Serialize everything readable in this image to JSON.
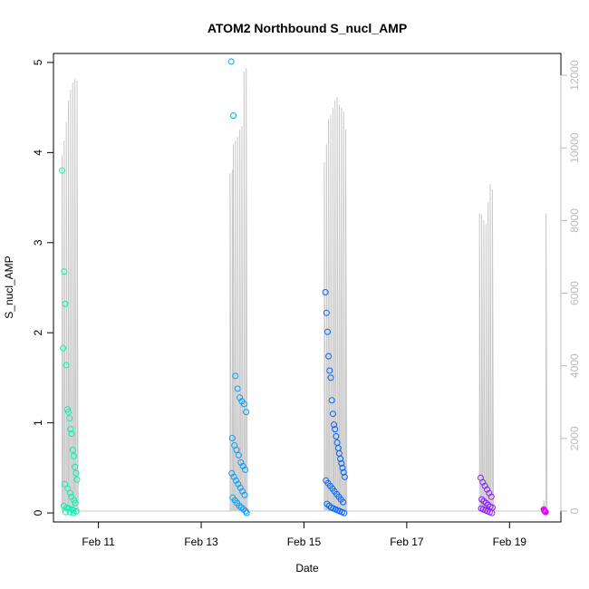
{
  "chart_data": {
    "type": "scatter",
    "title": "ATOM2 Northbound S_nucl_AMP",
    "xlabel": "Date",
    "ylabel": "S_nucl_AMP",
    "x_ticks": [
      "Feb 11",
      "Feb 13",
      "Feb 15",
      "Feb 17",
      "Feb 19"
    ],
    "y_ticks": [
      "0",
      "1",
      "2",
      "3",
      "4",
      "5"
    ],
    "y2_ticks": [
      "0",
      "2000",
      "4000",
      "6000",
      "8000",
      "10000",
      "12000"
    ],
    "xlim": [
      "2016-02-10 03:00",
      "2016-02-20 00:00"
    ],
    "ylim": [
      -0.1,
      5.1
    ],
    "y2lim": [
      -300,
      12600
    ],
    "grid": false,
    "colors": {
      "axis": "#000000",
      "secondary_axis": "#bbbbbb",
      "line": "#c8c8c8",
      "gradient_start": "#00ffaa",
      "gradient_mid": "#00aaff",
      "gradient_mid2": "#0044ff",
      "gradient_end": "#ff00ff"
    },
    "secondary_series": {
      "name": "",
      "axis": "right",
      "x": [
        "2016-02-10 07:00",
        "2016-02-10 08:00",
        "2016-02-10 09:00",
        "2016-02-10 10:00",
        "2016-02-10 11:00",
        "2016-02-10 12:00",
        "2016-02-10 13:00",
        "2016-02-10 14:00",
        "2016-02-13 13:30",
        "2016-02-13 14:30",
        "2016-02-13 15:00",
        "2016-02-13 16:00",
        "2016-02-13 17:00",
        "2016-02-13 18:00",
        "2016-02-13 19:00",
        "2016-02-13 20:00",
        "2016-02-13 21:00",
        "2016-02-15 09:30",
        "2016-02-15 10:30",
        "2016-02-15 11:30",
        "2016-02-15 12:30",
        "2016-02-15 13:30",
        "2016-02-15 14:30",
        "2016-02-15 15:30",
        "2016-02-15 16:30",
        "2016-02-15 17:30",
        "2016-02-15 18:30",
        "2016-02-15 19:30",
        "2016-02-18 10:00",
        "2016-02-18 11:00",
        "2016-02-18 12:00",
        "2016-02-18 13:00",
        "2016-02-18 14:00",
        "2016-02-18 15:00",
        "2016-02-18 16:00",
        "2016-02-19 16:00",
        "2016-02-19 17:00"
      ],
      "values": [
        9800,
        10200,
        10700,
        11300,
        11600,
        11800,
        11900,
        11850,
        9300,
        9400,
        10100,
        10200,
        10300,
        10500,
        10600,
        12100,
        12200,
        9600,
        10100,
        10800,
        10900,
        11100,
        11300,
        11400,
        11200,
        11100,
        11000,
        10500,
        8200,
        8150,
        8000,
        7900,
        8500,
        9000,
        8850,
        290,
        8200
      ]
    },
    "series": [
      {
        "name": "",
        "x": [
          "2016-02-10 07:00",
          "2016-02-10 07:30",
          "2016-02-10 08:00",
          "2016-02-10 08:30",
          "2016-02-10 09:00",
          "2016-02-10 09:30",
          "2016-02-10 10:00",
          "2016-02-10 10:30",
          "2016-02-10 11:00",
          "2016-02-10 11:30",
          "2016-02-10 12:00",
          "2016-02-10 12:30",
          "2016-02-10 13:00",
          "2016-02-10 13:30",
          "2016-02-10 14:00",
          "2016-02-10 08:20",
          "2016-02-10 09:40",
          "2016-02-10 10:50",
          "2016-02-10 11:20",
          "2016-02-10 12:40",
          "2016-02-10 13:10",
          "2016-02-10 07:50",
          "2016-02-10 09:10",
          "2016-02-10 10:15",
          "2016-02-10 11:40",
          "2016-02-10 12:10",
          "2016-02-10 13:40",
          "2016-02-10 08:40",
          "2016-02-10 10:40",
          "2016-02-10 12:20"
        ],
        "values": [
          3.8,
          1.83,
          2.68,
          2.32,
          1.64,
          1.15,
          1.12,
          1.05,
          0.93,
          0.88,
          0.7,
          0.63,
          0.51,
          0.44,
          0.37,
          0.32,
          0.27,
          0.22,
          0.18,
          0.14,
          0.11,
          0.08,
          0.06,
          0.05,
          0.04,
          0.03,
          0.02,
          0.01,
          0.01,
          0.0
        ]
      },
      {
        "name": "",
        "x": [
          "2016-02-13 14:00",
          "2016-02-13 15:00",
          "2016-02-13 16:00",
          "2016-02-13 17:00",
          "2016-02-13 18:00",
          "2016-02-13 19:00",
          "2016-02-13 20:00",
          "2016-02-13 21:00",
          "2016-02-13 14:30",
          "2016-02-13 15:30",
          "2016-02-13 16:30",
          "2016-02-13 17:30",
          "2016-02-13 18:30",
          "2016-02-13 19:30",
          "2016-02-13 20:30",
          "2016-02-13 14:15",
          "2016-02-13 15:15",
          "2016-02-13 16:15",
          "2016-02-13 17:15",
          "2016-02-13 18:15",
          "2016-02-13 19:15",
          "2016-02-13 20:15",
          "2016-02-13 14:45",
          "2016-02-13 15:45",
          "2016-02-13 16:45",
          "2016-02-13 17:45",
          "2016-02-13 18:45",
          "2016-02-13 19:45",
          "2016-02-13 20:45",
          "2016-02-13 21:15"
        ],
        "values": [
          5.01,
          4.41,
          1.52,
          1.38,
          1.28,
          1.24,
          1.21,
          1.12,
          0.83,
          0.75,
          0.7,
          0.64,
          0.56,
          0.52,
          0.48,
          0.44,
          0.4,
          0.36,
          0.32,
          0.28,
          0.24,
          0.2,
          0.17,
          0.14,
          0.11,
          0.08,
          0.06,
          0.04,
          0.02,
          0.0
        ]
      },
      {
        "name": "",
        "x": [
          "2016-02-15 10:00",
          "2016-02-15 10:30",
          "2016-02-15 11:00",
          "2016-02-15 11:30",
          "2016-02-15 12:00",
          "2016-02-15 12:30",
          "2016-02-15 13:00",
          "2016-02-15 13:30",
          "2016-02-15 14:00",
          "2016-02-15 14:30",
          "2016-02-15 15:00",
          "2016-02-15 15:30",
          "2016-02-15 16:00",
          "2016-02-15 16:30",
          "2016-02-15 17:00",
          "2016-02-15 17:30",
          "2016-02-15 18:00",
          "2016-02-15 18:30",
          "2016-02-15 19:00",
          "2016-02-15 10:15",
          "2016-02-15 11:15",
          "2016-02-15 12:15",
          "2016-02-15 13:15",
          "2016-02-15 14:15",
          "2016-02-15 15:15",
          "2016-02-15 16:15",
          "2016-02-15 17:15",
          "2016-02-15 18:15",
          "2016-02-15 10:45",
          "2016-02-15 11:45",
          "2016-02-15 12:45",
          "2016-02-15 13:45",
          "2016-02-15 14:45",
          "2016-02-15 15:45",
          "2016-02-15 16:45",
          "2016-02-15 17:45",
          "2016-02-15 18:45"
        ],
        "values": [
          2.45,
          2.22,
          2.01,
          1.74,
          1.58,
          1.5,
          1.25,
          1.1,
          0.98,
          0.93,
          0.85,
          0.78,
          0.72,
          0.66,
          0.6,
          0.55,
          0.5,
          0.45,
          0.4,
          0.36,
          0.33,
          0.3,
          0.27,
          0.24,
          0.21,
          0.18,
          0.15,
          0.12,
          0.1,
          0.08,
          0.06,
          0.05,
          0.04,
          0.03,
          0.02,
          0.01,
          0.0
        ]
      },
      {
        "name": "",
        "x": [
          "2016-02-18 10:30",
          "2016-02-18 11:30",
          "2016-02-18 12:30",
          "2016-02-18 13:30",
          "2016-02-18 14:30",
          "2016-02-18 15:30",
          "2016-02-18 11:00",
          "2016-02-18 12:00",
          "2016-02-18 13:00",
          "2016-02-18 14:00",
          "2016-02-18 15:00",
          "2016-02-18 16:00",
          "2016-02-18 10:45",
          "2016-02-18 11:45",
          "2016-02-18 12:45",
          "2016-02-18 13:45",
          "2016-02-18 14:45",
          "2016-02-18 15:45"
        ],
        "values": [
          0.39,
          0.34,
          0.3,
          0.26,
          0.22,
          0.18,
          0.15,
          0.13,
          0.11,
          0.09,
          0.07,
          0.06,
          0.05,
          0.04,
          0.03,
          0.02,
          0.01,
          0.0
        ]
      },
      {
        "name": "",
        "x": [
          "2016-02-19 16:00",
          "2016-02-19 16:10",
          "2016-02-19 16:20",
          "2016-02-19 16:30",
          "2016-02-19 16:40",
          "2016-02-19 16:50"
        ],
        "values": [
          0.04,
          0.03,
          0.025,
          0.02,
          0.015,
          0.01
        ]
      }
    ]
  }
}
